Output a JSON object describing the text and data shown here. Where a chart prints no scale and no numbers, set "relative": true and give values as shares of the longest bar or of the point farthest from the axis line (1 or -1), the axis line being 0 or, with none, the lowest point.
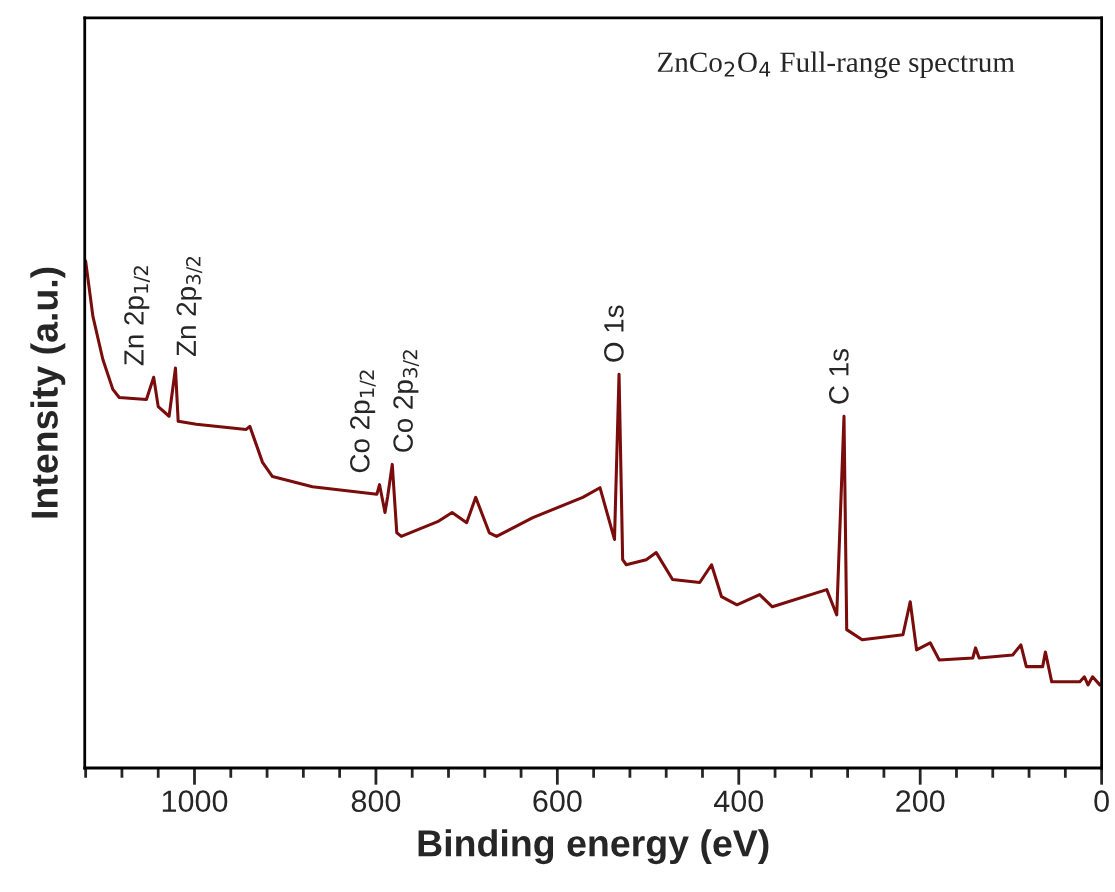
{
  "chart_data": {
    "type": "line",
    "relative": true,
    "xlabel": "Binding energy (eV)",
    "ylabel": "Intensity (a.u.)",
    "xlim": [
      1121,
      0
    ],
    "xticks": [
      0,
      200,
      400,
      600,
      800,
      1000,
      {
        "value": 40,
        "label": null
      },
      {
        "value": 80,
        "label": null
      },
      {
        "value": 120,
        "label": null
      },
      {
        "value": 160,
        "label": null
      },
      {
        "value": 240,
        "label": null
      },
      {
        "value": 280,
        "label": null
      },
      {
        "value": 320,
        "label": null
      },
      {
        "value": 360,
        "label": null
      },
      {
        "value": 440,
        "label": null
      },
      {
        "value": 480,
        "label": null
      },
      {
        "value": 520,
        "label": null
      },
      {
        "value": 560,
        "label": null
      },
      {
        "value": 640,
        "label": null
      },
      {
        "value": 680,
        "label": null
      },
      {
        "value": 720,
        "label": null
      },
      {
        "value": 760,
        "label": null
      },
      {
        "value": 840,
        "label": null
      },
      {
        "value": 880,
        "label": null
      },
      {
        "value": 920,
        "label": null
      },
      {
        "value": 960,
        "label": null
      },
      {
        "value": 1040,
        "label": null
      },
      {
        "value": 1080,
        "label": null
      },
      {
        "value": 1120,
        "label": null
      }
    ],
    "tick_labels": "x",
    "grid": false,
    "legend": false,
    "marker": "none",
    "line_style": "solid",
    "series": [
      {
        "color": "#7a0c0c",
        "x": [
          1120,
          1112,
          1101,
          1090,
          1083,
          1053,
          1045,
          1040,
          1028,
          1021,
          1018,
          998,
          943,
          939,
          925,
          914,
          870,
          799,
          796,
          790,
          787,
          782,
          777,
          772,
          732,
          716,
          700,
          690,
          675,
          667,
          627,
          572,
          553,
          537,
          532,
          528,
          524,
          502,
          491,
          473,
          443,
          430,
          419,
          402,
          377,
          363,
          303,
          292,
          284,
          281,
          264,
          219,
          211,
          204,
          189,
          179,
          142,
          139,
          135,
          98,
          89,
          83,
          65,
          62,
          55,
          24,
          19,
          15,
          10,
          2
        ],
        "values": [
          1.0,
          0.891,
          0.806,
          0.747,
          0.731,
          0.727,
          0.771,
          0.713,
          0.694,
          0.789,
          0.684,
          0.678,
          0.668,
          0.674,
          0.603,
          0.575,
          0.555,
          0.54,
          0.559,
          0.504,
          0.536,
          0.599,
          0.464,
          0.457,
          0.486,
          0.504,
          0.484,
          0.534,
          0.464,
          0.457,
          0.494,
          0.534,
          0.553,
          0.451,
          0.777,
          0.411,
          0.401,
          0.411,
          0.425,
          0.372,
          0.366,
          0.401,
          0.338,
          0.322,
          0.342,
          0.318,
          0.352,
          0.302,
          0.694,
          0.273,
          0.253,
          0.263,
          0.328,
          0.233,
          0.247,
          0.213,
          0.217,
          0.237,
          0.217,
          0.223,
          0.243,
          0.2,
          0.2,
          0.229,
          0.17,
          0.17,
          0.18,
          0.164,
          0.18,
          0.164
        ]
      }
    ],
    "annotations": [
      "ZnCo$_{2}$O$_{4}$ Full-range spectrum",
      {
        "text": "Zn 2p$_{1/2}$",
        "x": 1045,
        "y": 0.771
      },
      {
        "text": "Zn 2p$_{3/2}$",
        "x": 1021,
        "y": 0.789
      },
      {
        "text": "Co 2p$_{1/2}$",
        "x": 796,
        "y": 0.559
      },
      {
        "text": "Co 2p$_{3/2}$",
        "x": 782,
        "y": 0.599
      },
      {
        "text": "O 1s",
        "x": 532,
        "y": 0.777
      },
      {
        "text": "C 1s",
        "x": 284,
        "y": 0.694
      }
    ]
  }
}
